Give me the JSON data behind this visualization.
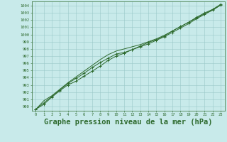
{
  "title": "Graphe pression niveau de la mer (hPa)",
  "x_hours": [
    0,
    1,
    2,
    3,
    4,
    5,
    6,
    7,
    8,
    9,
    10,
    11,
    12,
    13,
    14,
    15,
    16,
    17,
    18,
    19,
    20,
    21,
    22,
    23
  ],
  "line1": [
    989.6,
    990.3,
    991.3,
    992.2,
    993.0,
    993.5,
    994.2,
    994.9,
    995.6,
    996.4,
    997.0,
    997.4,
    997.9,
    998.3,
    998.7,
    999.2,
    999.7,
    1000.3,
    1000.9,
    1001.5,
    1002.2,
    1002.8,
    1003.4,
    1004.1
  ],
  "line2": [
    989.6,
    990.5,
    991.4,
    992.3,
    993.2,
    993.9,
    994.6,
    995.4,
    996.1,
    996.7,
    997.3,
    997.5,
    997.9,
    998.4,
    998.9,
    999.3,
    999.8,
    1000.5,
    1001.1,
    1001.7,
    1002.4,
    1003.0,
    1003.5,
    1004.2
  ],
  "line3": [
    989.6,
    990.8,
    991.5,
    992.4,
    993.3,
    994.1,
    994.9,
    995.7,
    996.5,
    997.2,
    997.7,
    998.0,
    998.3,
    998.6,
    999.0,
    999.4,
    999.9,
    1000.5,
    1001.1,
    1001.7,
    1002.3,
    1002.9,
    1003.4,
    1004.1
  ],
  "ylim_min": 989.4,
  "ylim_max": 1004.6,
  "yticks": [
    990,
    991,
    992,
    993,
    994,
    995,
    996,
    997,
    998,
    999,
    1000,
    1001,
    1002,
    1003,
    1004
  ],
  "line_color": "#2d6a2d",
  "bg_color": "#c8eaea",
  "grid_color": "#9ac8c8",
  "title_color": "#2d6a2d",
  "title_fontsize": 7.5,
  "figwidth": 3.2,
  "figheight": 2.0,
  "dpi": 100
}
